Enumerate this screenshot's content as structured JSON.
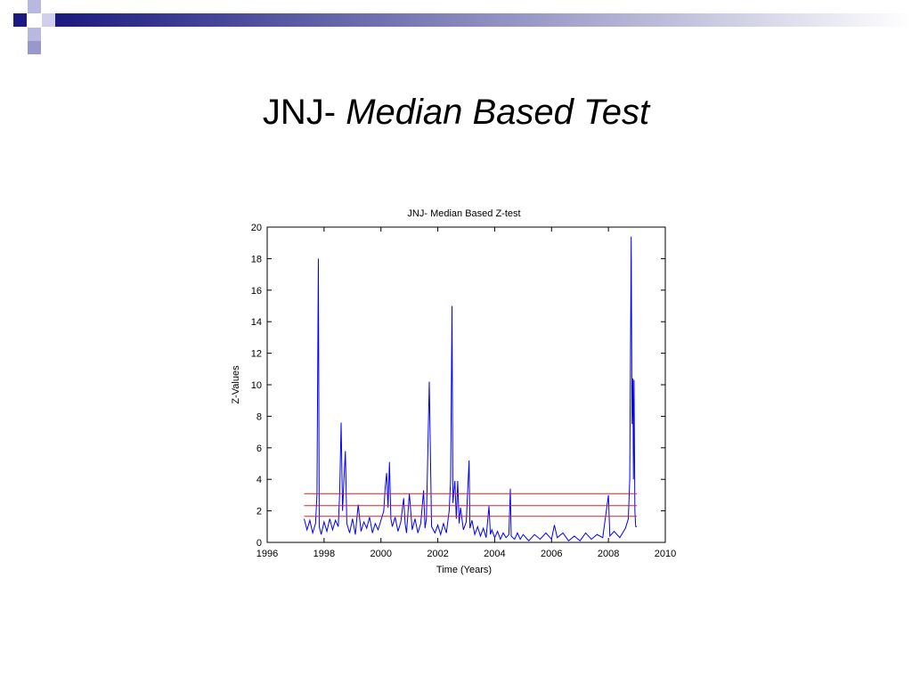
{
  "slide_title": {
    "prefix": "JNJ-",
    "emphasis": "Median Based Test"
  },
  "chart_data": {
    "type": "line",
    "title": "JNJ- Median Based Z-test",
    "xlabel": "Time (Years)",
    "ylabel": "Z-Values",
    "xlim": [
      1996,
      2010
    ],
    "xticks": [
      1996,
      1998,
      2000,
      2002,
      2004,
      2006,
      2008,
      2010
    ],
    "ylim": [
      0,
      20
    ],
    "yticks": [
      0,
      2,
      4,
      6,
      8,
      10,
      12,
      14,
      16,
      18,
      20
    ],
    "grid": false,
    "x": [
      1997.3,
      1997.4,
      1997.5,
      1997.6,
      1997.7,
      1997.75,
      1997.8,
      1997.83,
      1997.9,
      1998.0,
      1998.1,
      1998.2,
      1998.3,
      1998.4,
      1998.5,
      1998.55,
      1998.6,
      1998.65,
      1998.7,
      1998.75,
      1998.8,
      1998.9,
      1999.0,
      1999.1,
      1999.2,
      1999.3,
      1999.4,
      1999.5,
      1999.6,
      1999.7,
      1999.8,
      1999.9,
      2000.0,
      2000.1,
      2000.15,
      2000.2,
      2000.25,
      2000.3,
      2000.35,
      2000.4,
      2000.5,
      2000.6,
      2000.7,
      2000.8,
      2000.85,
      2000.9,
      2001.0,
      2001.1,
      2001.2,
      2001.3,
      2001.4,
      2001.5,
      2001.55,
      2001.6,
      2001.7,
      2001.73,
      2001.78,
      2001.9,
      2002.0,
      2002.1,
      2002.2,
      2002.3,
      2002.4,
      2002.45,
      2002.5,
      2002.53,
      2002.6,
      2002.65,
      2002.7,
      2002.75,
      2002.8,
      2002.9,
      2003.0,
      2003.1,
      2003.13,
      2003.2,
      2003.3,
      2003.4,
      2003.5,
      2003.6,
      2003.7,
      2003.8,
      2003.85,
      2003.9,
      2004.0,
      2004.1,
      2004.2,
      2004.3,
      2004.4,
      2004.5,
      2004.55,
      2004.58,
      2004.7,
      2004.8,
      2004.9,
      2005.0,
      2005.2,
      2005.4,
      2005.6,
      2005.8,
      2006.0,
      2006.1,
      2006.2,
      2006.4,
      2006.6,
      2006.8,
      2007.0,
      2007.2,
      2007.4,
      2007.6,
      2007.8,
      2008.0,
      2008.05,
      2008.2,
      2008.4,
      2008.6,
      2008.7,
      2008.75,
      2008.8,
      2008.83,
      2008.86,
      2008.88,
      2008.9,
      2008.93,
      2008.96,
      2009.0
    ],
    "series": [
      {
        "color": "#0000ff",
        "values": [
          1.5,
          0.8,
          1.4,
          0.6,
          1.2,
          3.0,
          18.0,
          1.0,
          0.5,
          1.3,
          0.7,
          1.5,
          0.8,
          1.4,
          1.0,
          3.2,
          7.6,
          2.0,
          4.0,
          5.8,
          1.2,
          0.6,
          1.5,
          0.5,
          2.4,
          0.7,
          1.3,
          0.9,
          1.6,
          0.6,
          1.2,
          0.8,
          1.4,
          2.0,
          3.5,
          4.4,
          2.2,
          5.1,
          1.5,
          1.0,
          1.6,
          0.7,
          1.3,
          2.8,
          1.2,
          0.6,
          3.1,
          0.8,
          1.5,
          0.6,
          1.2,
          3.3,
          0.9,
          1.5,
          10.2,
          6.8,
          1.0,
          0.6,
          1.1,
          0.5,
          1.2,
          0.6,
          2.0,
          3.9,
          15.0,
          2.5,
          3.9,
          1.5,
          3.9,
          1.2,
          2.2,
          0.8,
          1.3,
          5.2,
          0.9,
          1.4,
          0.5,
          1.0,
          0.4,
          0.9,
          0.3,
          2.3,
          0.5,
          0.8,
          0.3,
          0.7,
          0.2,
          0.6,
          0.3,
          0.5,
          3.4,
          0.4,
          0.2,
          0.6,
          0.2,
          0.5,
          0.1,
          0.5,
          0.2,
          0.6,
          0.2,
          1.1,
          0.3,
          0.6,
          0.1,
          0.4,
          0.1,
          0.6,
          0.2,
          0.5,
          0.3,
          3.0,
          0.4,
          0.7,
          0.3,
          0.9,
          1.5,
          4.0,
          19.4,
          7.5,
          10.4,
          4.0,
          10.3,
          2.0,
          1.0,
          1.0
        ]
      }
    ],
    "reference_lines": {
      "color": "#e02020",
      "values": [
        3.09,
        2.33,
        1.65
      ]
    }
  }
}
